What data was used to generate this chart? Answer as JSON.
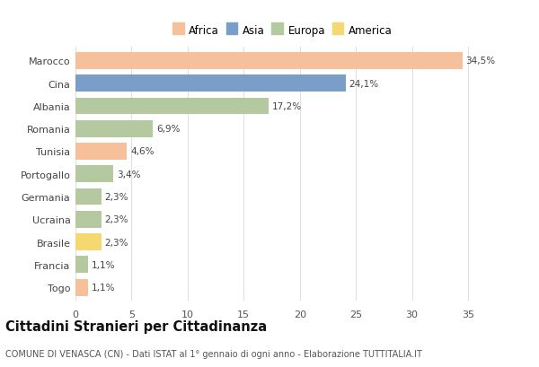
{
  "countries": [
    "Marocco",
    "Cina",
    "Albania",
    "Romania",
    "Tunisia",
    "Portogallo",
    "Germania",
    "Ucraina",
    "Brasile",
    "Francia",
    "Togo"
  ],
  "values": [
    34.5,
    24.1,
    17.2,
    6.9,
    4.6,
    3.4,
    2.3,
    2.3,
    2.3,
    1.1,
    1.1
  ],
  "labels": [
    "34,5%",
    "24,1%",
    "17,2%",
    "6,9%",
    "4,6%",
    "3,4%",
    "2,3%",
    "2,3%",
    "2,3%",
    "1,1%",
    "1,1%"
  ],
  "colors": [
    "#F5C09A",
    "#7B9EC9",
    "#B5C9A0",
    "#B5C9A0",
    "#F5C09A",
    "#B5C9A0",
    "#B5C9A0",
    "#B5C9A0",
    "#F5D870",
    "#B5C9A0",
    "#F5C09A"
  ],
  "legend_labels": [
    "Africa",
    "Asia",
    "Europa",
    "America"
  ],
  "legend_colors": [
    "#F5C09A",
    "#7B9EC9",
    "#B5C9A0",
    "#F5D870"
  ],
  "title": "Cittadini Stranieri per Cittadinanza",
  "subtitle": "COMUNE DI VENASCA (CN) - Dati ISTAT al 1° gennaio di ogni anno - Elaborazione TUTTITALIA.IT",
  "background_color": "#ffffff",
  "grid_color": "#e0e0e0",
  "xlim": [
    0,
    37
  ],
  "bar_height": 0.75
}
